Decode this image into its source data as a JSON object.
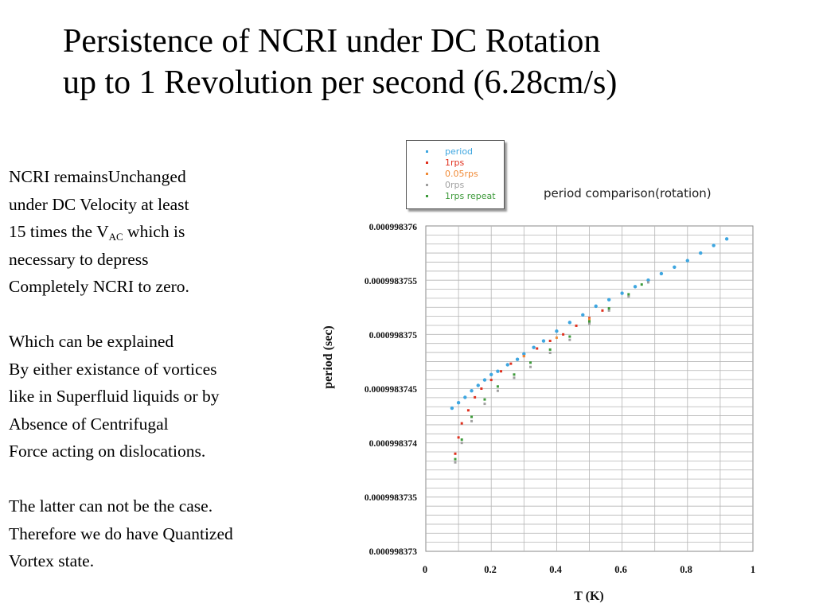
{
  "slide": {
    "title_line1": "Persistence of NCRI under DC Rotation",
    "title_line2": "up to 1 Revolution per second (6.28cm/s)",
    "body": {
      "p1_l1": "NCRI remainsUnchanged",
      "p1_l2": "under DC Velocity at least",
      "p1_l3_a": "15 times the V",
      "p1_l3_sub": "AC",
      "p1_l3_b": " which is",
      "p1_l4": "necessary to depress",
      "p1_l5": "Completely NCRI to zero.",
      "p2_l1": "Which can be explained",
      "p2_l2": "By either existance of vortices",
      "p2_l3": "like in Superfluid liquids or by",
      "p2_l4": "Absence of Centrifugal",
      "p2_l5": "Force acting on dislocations.",
      "p3_l1": "The latter can not be the case.",
      "p3_l2": "Therefore we do have Quantized",
      "p3_l3": "Vortex state."
    }
  },
  "chart_data": {
    "type": "scatter",
    "title": "period comparison(rotation)",
    "xlabel": "T (K)",
    "ylabel": "period (sec)",
    "xlim": [
      0,
      1
    ],
    "ylim": [
      0.000998373,
      0.000998376
    ],
    "x_tick_labels": [
      "0",
      "0.2",
      "0.4",
      "0.6",
      "0.8",
      "1"
    ],
    "y_tick_labels": [
      "0.000998376",
      "0.0009983755",
      "0.000998375",
      "0.0009983745",
      "0.000998374",
      "0.0009983735",
      "0.000998373"
    ],
    "grid": true,
    "legend_position": "top-left, above plot",
    "series": [
      {
        "name": "period",
        "color": "#3ea6e0",
        "x": [
          0.08,
          0.1,
          0.12,
          0.14,
          0.16,
          0.18,
          0.2,
          0.22,
          0.25,
          0.28,
          0.3,
          0.33,
          0.36,
          0.4,
          0.44,
          0.48,
          0.52,
          0.56,
          0.6,
          0.64,
          0.68,
          0.72,
          0.76,
          0.8,
          0.84,
          0.88,
          0.92
        ],
        "y": [
          0.00099837432,
          0.00099837437,
          0.00099837442,
          0.00099837448,
          0.00099837453,
          0.00099837458,
          0.00099837463,
          0.00099837466,
          0.00099837472,
          0.00099837477,
          0.00099837482,
          0.00099837488,
          0.00099837494,
          0.00099837503,
          0.00099837511,
          0.00099837518,
          0.00099837526,
          0.00099837532,
          0.00099837538,
          0.00099837544,
          0.0009983755,
          0.00099837556,
          0.00099837562,
          0.00099837568,
          0.00099837575,
          0.00099837582,
          0.00099837588
        ]
      },
      {
        "name": "1rps",
        "color": "#e0301e",
        "x": [
          0.09,
          0.1,
          0.11,
          0.13,
          0.15,
          0.17,
          0.2,
          0.23,
          0.26,
          0.3,
          0.34,
          0.38,
          0.42,
          0.46,
          0.5,
          0.54
        ],
        "y": [
          0.0009983739,
          0.00099837405,
          0.00099837418,
          0.0009983743,
          0.00099837442,
          0.0009983745,
          0.00099837458,
          0.00099837466,
          0.00099837473,
          0.0009983748,
          0.00099837487,
          0.00099837494,
          0.000998375,
          0.00099837508,
          0.00099837515,
          0.00099837522
        ]
      },
      {
        "name": "0.05rps",
        "color": "#f08a36",
        "x": [
          0.3,
          0.4,
          0.5
        ],
        "y": [
          0.0009983748,
          0.00099837497,
          0.00099837514
        ]
      },
      {
        "name": "0rps",
        "color": "#a0a0a0",
        "x": [
          0.09,
          0.11,
          0.14,
          0.18,
          0.22,
          0.27,
          0.32,
          0.38,
          0.44,
          0.5,
          0.56,
          0.62,
          0.68
        ],
        "y": [
          0.00099837382,
          0.000998374,
          0.0009983742,
          0.00099837436,
          0.00099837448,
          0.0009983746,
          0.0009983747,
          0.00099837483,
          0.00099837495,
          0.0009983751,
          0.00099837522,
          0.00099837535,
          0.00099837548
        ]
      },
      {
        "name": "1rps repeat",
        "color": "#3d9a3a",
        "x": [
          0.09,
          0.11,
          0.14,
          0.18,
          0.22,
          0.27,
          0.32,
          0.38,
          0.44,
          0.5,
          0.56,
          0.62,
          0.66
        ],
        "y": [
          0.00099837385,
          0.00099837403,
          0.00099837424,
          0.0009983744,
          0.00099837452,
          0.00099837463,
          0.00099837474,
          0.00099837486,
          0.00099837498,
          0.00099837512,
          0.00099837524,
          0.00099837537,
          0.00099837546
        ]
      }
    ]
  }
}
